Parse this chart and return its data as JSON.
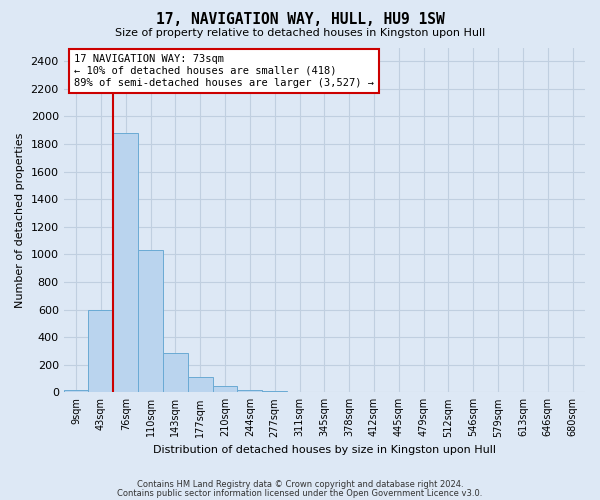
{
  "title1": "17, NAVIGATION WAY, HULL, HU9 1SW",
  "title2": "Size of property relative to detached houses in Kingston upon Hull",
  "xlabel": "Distribution of detached houses by size in Kingston upon Hull",
  "ylabel": "Number of detached properties",
  "bar_labels": [
    "9sqm",
    "43sqm",
    "76sqm",
    "110sqm",
    "143sqm",
    "177sqm",
    "210sqm",
    "244sqm",
    "277sqm",
    "311sqm",
    "345sqm",
    "378sqm",
    "412sqm",
    "445sqm",
    "479sqm",
    "512sqm",
    "546sqm",
    "579sqm",
    "613sqm",
    "646sqm",
    "680sqm"
  ],
  "bar_values": [
    15,
    600,
    1880,
    1030,
    285,
    110,
    45,
    20,
    10,
    5,
    0,
    0,
    0,
    0,
    0,
    0,
    0,
    0,
    0,
    0,
    0
  ],
  "bar_color": "#bad4ee",
  "bar_edge_color": "#6aaad4",
  "vline_color": "#cc0000",
  "annotation_text": "17 NAVIGATION WAY: 73sqm\n← 10% of detached houses are smaller (418)\n89% of semi-detached houses are larger (3,527) →",
  "ylim": [
    0,
    2500
  ],
  "yticks": [
    0,
    200,
    400,
    600,
    800,
    1000,
    1200,
    1400,
    1600,
    1800,
    2000,
    2200,
    2400
  ],
  "footer1": "Contains HM Land Registry data © Crown copyright and database right 2024.",
  "footer2": "Contains public sector information licensed under the Open Government Licence v3.0.",
  "bg_color": "#dde8f5",
  "plot_bg_color": "#dde8f5",
  "grid_color": "#c0cfe0"
}
